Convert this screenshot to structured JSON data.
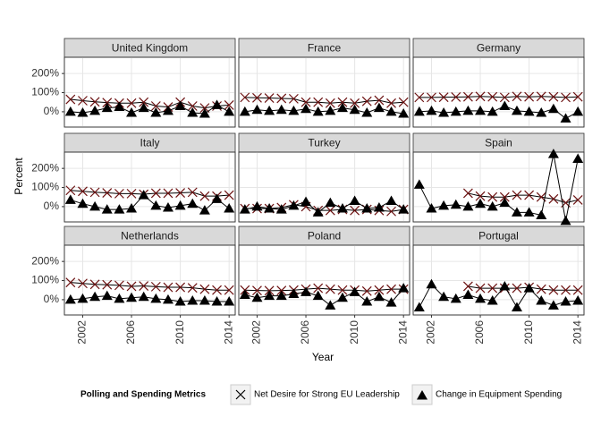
{
  "chart_data": [
    {
      "type": "line",
      "title": "United Kingdom",
      "x": [
        2001,
        2002,
        2003,
        2004,
        2005,
        2006,
        2007,
        2008,
        2009,
        2010,
        2011,
        2012,
        2013,
        2014
      ],
      "series": [
        {
          "name": "Net Desire for Strong EU Leadership",
          "marker": "x",
          "color": "#000000",
          "values": [
            65,
            58,
            52,
            48,
            45,
            45,
            50,
            30,
            25,
            50,
            30,
            20,
            30,
            35
          ]
        },
        {
          "name": "Change in Equipment Spending",
          "marker": "triangle",
          "color": "#000000",
          "values": [
            0,
            -5,
            5,
            20,
            25,
            -5,
            20,
            -5,
            5,
            30,
            -5,
            -10,
            35,
            0
          ]
        }
      ],
      "xlim": [
        2000.5,
        2014.5
      ],
      "xticks": [
        2002,
        2006,
        2010,
        2014
      ],
      "ylim": [
        -80,
        285
      ],
      "yticks": [
        {
          "value": 0,
          "label": "0%"
        },
        {
          "value": 100,
          "label": "100%"
        },
        {
          "value": 200,
          "label": "200%"
        }
      ],
      "grid": true
    },
    {
      "type": "line",
      "title": "France",
      "x": [
        2001,
        2002,
        2003,
        2004,
        2005,
        2006,
        2007,
        2008,
        2009,
        2010,
        2011,
        2012,
        2013,
        2014
      ],
      "series": [
        {
          "name": "Net Desire for Strong EU Leadership",
          "marker": "x",
          "color": "#000000",
          "values": [
            75,
            73,
            72,
            70,
            68,
            50,
            50,
            45,
            50,
            45,
            55,
            60,
            45,
            50
          ]
        },
        {
          "name": "Change in Equipment Spending",
          "marker": "triangle",
          "color": "#000000",
          "values": [
            0,
            10,
            5,
            10,
            5,
            15,
            0,
            5,
            20,
            10,
            -5,
            20,
            0,
            -10
          ]
        }
      ],
      "xlim": [
        2000.5,
        2014.5
      ],
      "xticks": [
        2002,
        2006,
        2010,
        2014
      ],
      "ylim": [
        -80,
        285
      ],
      "yticks": [
        {
          "value": 0,
          "label": "0%"
        },
        {
          "value": 100,
          "label": "100%"
        },
        {
          "value": 200,
          "label": "200%"
        }
      ],
      "grid": true
    },
    {
      "type": "line",
      "title": "Germany",
      "x": [
        2001,
        2002,
        2003,
        2004,
        2005,
        2006,
        2007,
        2008,
        2009,
        2010,
        2011,
        2012,
        2013,
        2014
      ],
      "series": [
        {
          "name": "Net Desire for Strong EU Leadership",
          "marker": "x",
          "color": "#000000",
          "values": [
            75,
            75,
            76,
            77,
            78,
            80,
            78,
            75,
            80,
            78,
            80,
            78,
            75,
            78
          ]
        },
        {
          "name": "Change in Equipment Spending",
          "marker": "triangle",
          "color": "#000000",
          "values": [
            0,
            5,
            -5,
            0,
            5,
            5,
            0,
            30,
            5,
            0,
            -5,
            15,
            -35,
            0
          ]
        }
      ],
      "xlim": [
        2000.5,
        2014.5
      ],
      "xticks": [
        2002,
        2006,
        2010,
        2014
      ],
      "ylim": [
        -80,
        285
      ],
      "yticks": [
        {
          "value": 0,
          "label": "0%"
        },
        {
          "value": 100,
          "label": "100%"
        },
        {
          "value": 200,
          "label": "200%"
        }
      ],
      "grid": true
    },
    {
      "type": "line",
      "title": "Italy",
      "x": [
        2001,
        2002,
        2003,
        2004,
        2005,
        2006,
        2007,
        2008,
        2009,
        2010,
        2011,
        2012,
        2013,
        2014
      ],
      "series": [
        {
          "name": "Net Desire for Strong EU Leadership",
          "marker": "x",
          "color": "#000000",
          "values": [
            85,
            80,
            75,
            72,
            68,
            68,
            65,
            70,
            70,
            72,
            75,
            55,
            55,
            60
          ]
        },
        {
          "name": "Change in Equipment Spending",
          "marker": "triangle",
          "color": "#000000",
          "values": [
            35,
            15,
            0,
            -15,
            -15,
            -10,
            60,
            5,
            -5,
            5,
            15,
            -20,
            40,
            -10
          ]
        }
      ],
      "xlim": [
        2000.5,
        2014.5
      ],
      "xticks": [
        2002,
        2006,
        2010,
        2014
      ],
      "ylim": [
        -80,
        285
      ],
      "yticks": [
        {
          "value": 0,
          "label": "0%"
        },
        {
          "value": 100,
          "label": "100%"
        },
        {
          "value": 200,
          "label": "200%"
        }
      ],
      "grid": true
    },
    {
      "type": "line",
      "title": "Turkey",
      "x": [
        2001,
        2002,
        2003,
        2004,
        2005,
        2006,
        2007,
        2008,
        2009,
        2010,
        2011,
        2012,
        2013,
        2014
      ],
      "series": [
        {
          "name": "Net Desire for Strong EU Leadership",
          "marker": "x",
          "color": "#000000",
          "values": [
            -10,
            -10,
            -10,
            -5,
            10,
            0,
            -20,
            -20,
            -15,
            -20,
            -15,
            -20,
            -25,
            -15
          ]
        },
        {
          "name": "Change in Equipment Spending",
          "marker": "triangle",
          "color": "#000000",
          "values": [
            -15,
            0,
            -10,
            -15,
            5,
            25,
            -30,
            20,
            -10,
            30,
            -10,
            -5,
            30,
            -15
          ]
        }
      ],
      "xlim": [
        2000.5,
        2014.5
      ],
      "xticks": [
        2002,
        2006,
        2010,
        2014
      ],
      "ylim": [
        -80,
        285
      ],
      "yticks": [
        {
          "value": 0,
          "label": "0%"
        },
        {
          "value": 100,
          "label": "100%"
        },
        {
          "value": 200,
          "label": "200%"
        }
      ],
      "grid": true
    },
    {
      "type": "line",
      "title": "Spain",
      "x": [
        2001,
        2002,
        2003,
        2004,
        2005,
        2006,
        2007,
        2008,
        2009,
        2010,
        2011,
        2012,
        2013,
        2014
      ],
      "series": [
        {
          "name": "Net Desire for Strong EU Leadership",
          "marker": "x",
          "color": "#000000",
          "values": [
            null,
            null,
            null,
            null,
            70,
            55,
            50,
            50,
            60,
            60,
            50,
            40,
            20,
            35
          ]
        },
        {
          "name": "Change in Equipment Spending",
          "marker": "triangle",
          "color": "#000000",
          "values": [
            115,
            -10,
            5,
            10,
            0,
            15,
            0,
            20,
            -30,
            -30,
            -45,
            275,
            -75,
            250
          ]
        }
      ],
      "xlim": [
        2000.5,
        2014.5
      ],
      "xticks": [
        2002,
        2006,
        2010,
        2014
      ],
      "ylim": [
        -80,
        285
      ],
      "yticks": [
        {
          "value": 0,
          "label": "0%"
        },
        {
          "value": 100,
          "label": "100%"
        },
        {
          "value": 200,
          "label": "200%"
        }
      ],
      "grid": true
    },
    {
      "type": "line",
      "title": "Netherlands",
      "x": [
        2001,
        2002,
        2003,
        2004,
        2005,
        2006,
        2007,
        2008,
        2009,
        2010,
        2011,
        2012,
        2013,
        2014
      ],
      "series": [
        {
          "name": "Net Desire for Strong EU Leadership",
          "marker": "x",
          "color": "#000000",
          "values": [
            90,
            85,
            80,
            78,
            75,
            70,
            72,
            68,
            65,
            65,
            62,
            55,
            50,
            50
          ]
        },
        {
          "name": "Change in Equipment Spending",
          "marker": "triangle",
          "color": "#000000",
          "values": [
            0,
            5,
            15,
            20,
            5,
            10,
            15,
            5,
            0,
            -10,
            -5,
            -5,
            -10,
            -10
          ]
        }
      ],
      "xlim": [
        2000.5,
        2014.5
      ],
      "xticks": [
        2002,
        2006,
        2010,
        2014
      ],
      "ylim": [
        -80,
        285
      ],
      "yticks": [
        {
          "value": 0,
          "label": "0%"
        },
        {
          "value": 100,
          "label": "100%"
        },
        {
          "value": 200,
          "label": "200%"
        }
      ],
      "grid": true
    },
    {
      "type": "line",
      "title": "Poland",
      "x": [
        2001,
        2002,
        2003,
        2004,
        2005,
        2006,
        2007,
        2008,
        2009,
        2010,
        2011,
        2012,
        2013,
        2014
      ],
      "series": [
        {
          "name": "Net Desire for Strong EU Leadership",
          "marker": "x",
          "color": "#000000",
          "values": [
            50,
            48,
            47,
            48,
            50,
            55,
            60,
            55,
            50,
            50,
            45,
            50,
            55,
            55
          ]
        },
        {
          "name": "Change in Equipment Spending",
          "marker": "triangle",
          "color": "#000000",
          "values": [
            25,
            10,
            20,
            20,
            30,
            40,
            20,
            -30,
            10,
            40,
            -10,
            15,
            -15,
            60
          ]
        }
      ],
      "xlim": [
        2000.5,
        2014.5
      ],
      "xticks": [
        2002,
        2006,
        2010,
        2014
      ],
      "ylim": [
        -80,
        285
      ],
      "yticks": [
        {
          "value": 0,
          "label": "0%"
        },
        {
          "value": 100,
          "label": "100%"
        },
        {
          "value": 200,
          "label": "200%"
        }
      ],
      "grid": true
    },
    {
      "type": "line",
      "title": "Portugal",
      "x": [
        2001,
        2002,
        2003,
        2004,
        2005,
        2006,
        2007,
        2008,
        2009,
        2010,
        2011,
        2012,
        2013,
        2014
      ],
      "series": [
        {
          "name": "Net Desire for Strong EU Leadership",
          "marker": "x",
          "color": "#000000",
          "values": [
            null,
            null,
            null,
            null,
            70,
            60,
            60,
            60,
            60,
            65,
            55,
            50,
            50,
            50
          ]
        },
        {
          "name": "Change in Equipment Spending",
          "marker": "triangle",
          "color": "#000000",
          "values": [
            -40,
            80,
            15,
            5,
            25,
            5,
            -5,
            70,
            -40,
            60,
            -5,
            -30,
            -10,
            -5
          ]
        }
      ],
      "xlim": [
        2000.5,
        2014.5
      ],
      "xticks": [
        2002,
        2006,
        2010,
        2014
      ],
      "ylim": [
        -80,
        285
      ],
      "yticks": [
        {
          "value": 0,
          "label": "0%"
        },
        {
          "value": 100,
          "label": "100%"
        },
        {
          "value": 200,
          "label": "200%"
        }
      ],
      "grid": true
    }
  ],
  "x_label": "Year",
  "y_label": "Percent",
  "legend_title": "Polling and Spending Metrics"
}
